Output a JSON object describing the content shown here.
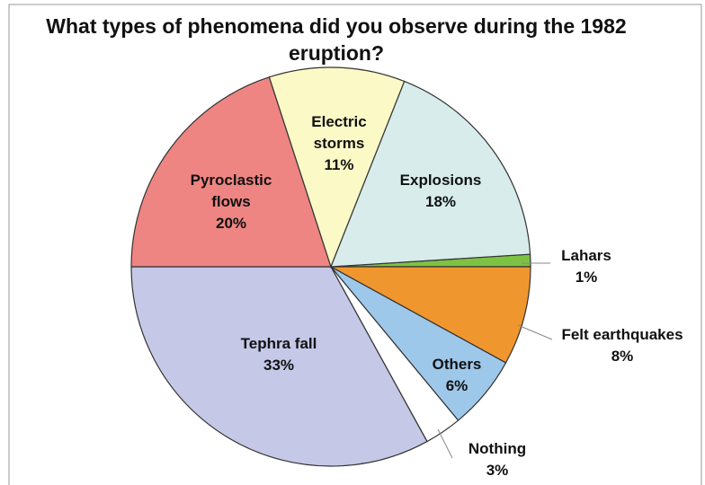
{
  "chart_data": {
    "type": "pie",
    "title": "What types of phenomena did you observe during the 1982 eruption?",
    "categories": [
      "Lahars",
      "Felt earthquakes",
      "Others",
      "Nothing",
      "Tephra fall",
      "Pyroclastic flows",
      "Electric storms",
      "Explosions"
    ],
    "values": [
      1,
      8,
      6,
      3,
      33,
      20,
      11,
      18
    ],
    "value_labels": [
      "1%",
      "8%",
      "6%",
      "3%",
      "33%",
      "20%",
      "11%",
      "18%"
    ],
    "colors": [
      "#7dc242",
      "#f0962e",
      "#9ec8ea",
      "#ffffff",
      "#c5c8e6",
      "#ee8582",
      "#fbf9c6",
      "#d8ecec"
    ]
  }
}
